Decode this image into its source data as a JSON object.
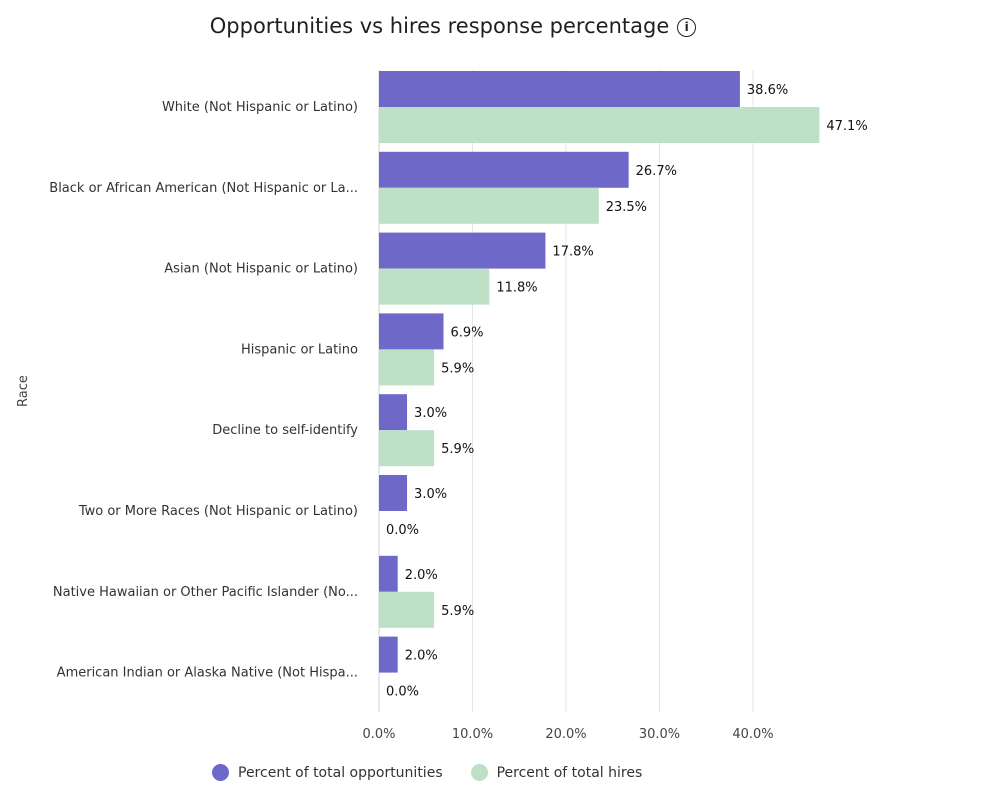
{
  "chart_data": {
    "type": "bar",
    "orientation": "horizontal",
    "title": "Opportunities vs hires response percentage",
    "title_icon": "info-icon",
    "ylabel": "Race",
    "xlabel": "",
    "categories": [
      "White (Not Hispanic or Latino)",
      "Black or African American (Not Hispanic or La...",
      "Asian (Not Hispanic or Latino)",
      "Hispanic or Latino",
      "Decline to self-identify",
      "Two or More Races (Not Hispanic or Latino)",
      "Native Hawaiian or Other Pacific Islander (No...",
      "American Indian or Alaska Native (Not Hispa..."
    ],
    "series": [
      {
        "name": "Percent of total opportunities",
        "color": "#6e68c8",
        "values": [
          38.6,
          26.7,
          17.8,
          6.9,
          3.0,
          3.0,
          2.0,
          2.0
        ]
      },
      {
        "name": "Percent of total hires",
        "color": "#bde0c7",
        "values": [
          47.1,
          23.5,
          11.8,
          5.9,
          5.9,
          0.0,
          5.9,
          0.0
        ]
      }
    ],
    "xticks": [
      "0.0%",
      "10.0%",
      "20.0%",
      "30.0%",
      "40.0%"
    ],
    "xtick_values": [
      0,
      10,
      20,
      30,
      40
    ],
    "xlim": [
      0,
      50
    ],
    "grid": true,
    "legend_position": "bottom"
  }
}
